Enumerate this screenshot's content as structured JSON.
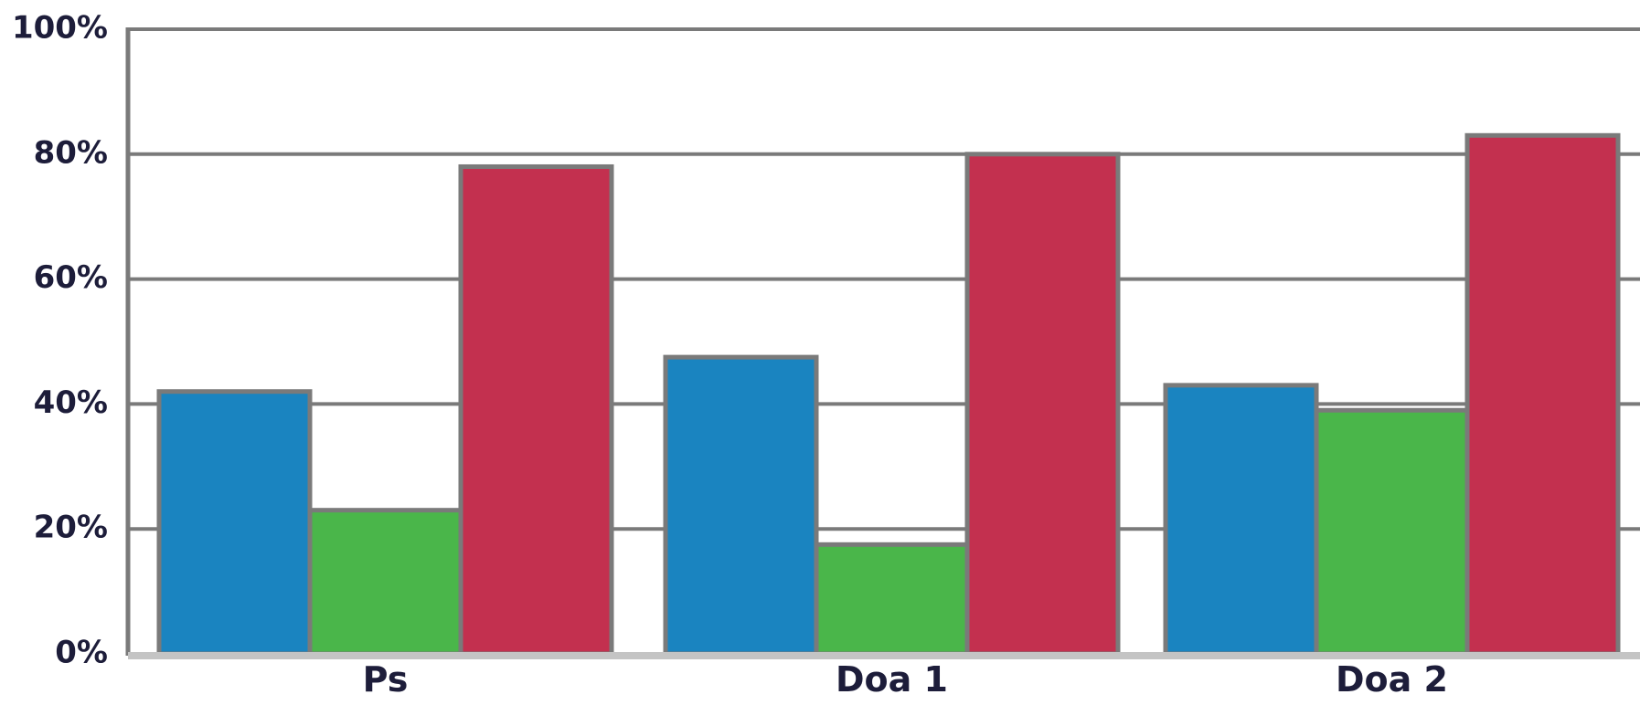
{
  "chart_data": {
    "type": "bar",
    "categories": [
      "Ps",
      "Doa 1",
      "Doa 2"
    ],
    "series": [
      {
        "color": "#1a84c0",
        "values": [
          42,
          47.5,
          43
        ]
      },
      {
        "color": "#4ab64a",
        "values": [
          23,
          17.5,
          39
        ]
      },
      {
        "color": "#c3304f",
        "values": [
          78,
          80,
          83
        ]
      }
    ],
    "ylim": [
      0,
      100
    ],
    "yticks": [
      0,
      20,
      40,
      60,
      80,
      100
    ],
    "ytick_labels": [
      "0%",
      "20%",
      "40%",
      "60%",
      "80%",
      "100%"
    ],
    "grid": true,
    "legend": "none",
    "title": "",
    "xlabel": "",
    "ylabel": ""
  }
}
